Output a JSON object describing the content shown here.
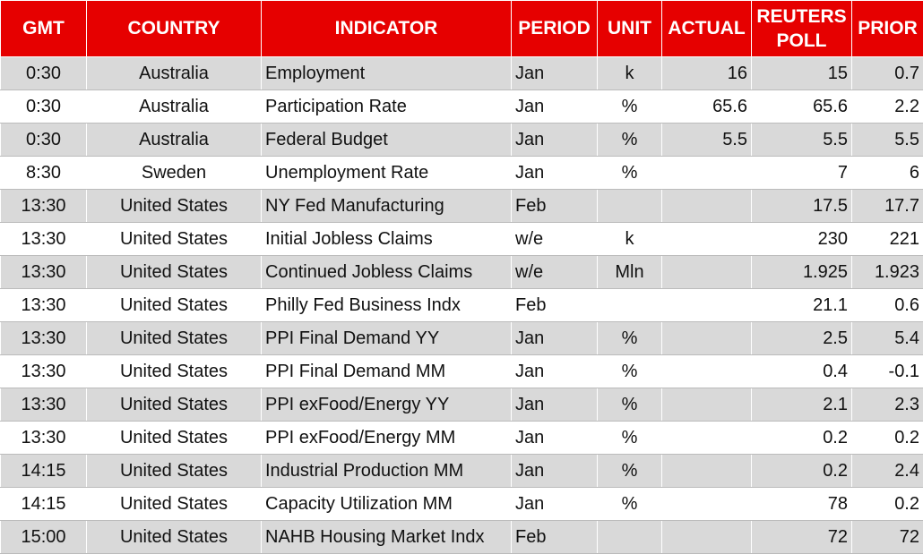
{
  "table": {
    "header": [
      "GMT",
      "COUNTRY",
      "INDICATOR",
      "PERIOD",
      "UNIT",
      "ACTUAL",
      "REUTERS POLL",
      "PRIOR"
    ],
    "rows": [
      [
        "0:30",
        "Australia",
        "Employment",
        "Jan",
        "k",
        "16",
        "15",
        "0.7"
      ],
      [
        "0:30",
        "Australia",
        "Participation Rate",
        "Jan",
        "%",
        "65.6",
        "65.6",
        "2.2"
      ],
      [
        "0:30",
        "Australia",
        "Federal Budget",
        "Jan",
        "%",
        "5.5",
        "5.5",
        "5.5"
      ],
      [
        "8:30",
        "Sweden",
        "Unemployment Rate",
        "Jan",
        "%",
        null,
        "7",
        "6"
      ],
      [
        "13:30",
        "United States",
        "NY Fed Manufacturing",
        "Feb",
        null,
        null,
        "17.5",
        "17.7"
      ],
      [
        "13:30",
        "United States",
        "Initial Jobless Claims",
        "w/e",
        "k",
        null,
        "230",
        "221"
      ],
      [
        "13:30",
        "United States",
        "Continued Jobless Claims",
        "w/e",
        "Mln",
        null,
        "1.925",
        "1.923"
      ],
      [
        "13:30",
        "United States",
        "Philly Fed Business Indx",
        "Feb",
        null,
        null,
        "21.1",
        "0.6"
      ],
      [
        "13:30",
        "United States",
        "PPI Final Demand YY",
        "Jan",
        "%",
        null,
        "2.5",
        "5.4"
      ],
      [
        "13:30",
        "United States",
        "PPI Final Demand MM",
        "Jan",
        "%",
        null,
        "0.4",
        "-0.1"
      ],
      [
        "13:30",
        "United States",
        "PPI exFood/Energy YY",
        "Jan",
        "%",
        null,
        "2.1",
        "2.3"
      ],
      [
        "13:30",
        "United States",
        "PPI exFood/Energy MM",
        "Jan",
        "%",
        null,
        "0.2",
        "0.2"
      ],
      [
        "14:15",
        "United States",
        "Industrial Production MM",
        "Jan",
        "%",
        null,
        "0.2",
        "2.4"
      ],
      [
        "14:15",
        "United States",
        "Capacity Utilization MM",
        "Jan",
        "%",
        null,
        "78",
        "0.2"
      ],
      [
        "15:00",
        "United States",
        "NAHB Housing Market Indx",
        "Feb",
        null,
        null,
        "72",
        "72"
      ]
    ]
  }
}
